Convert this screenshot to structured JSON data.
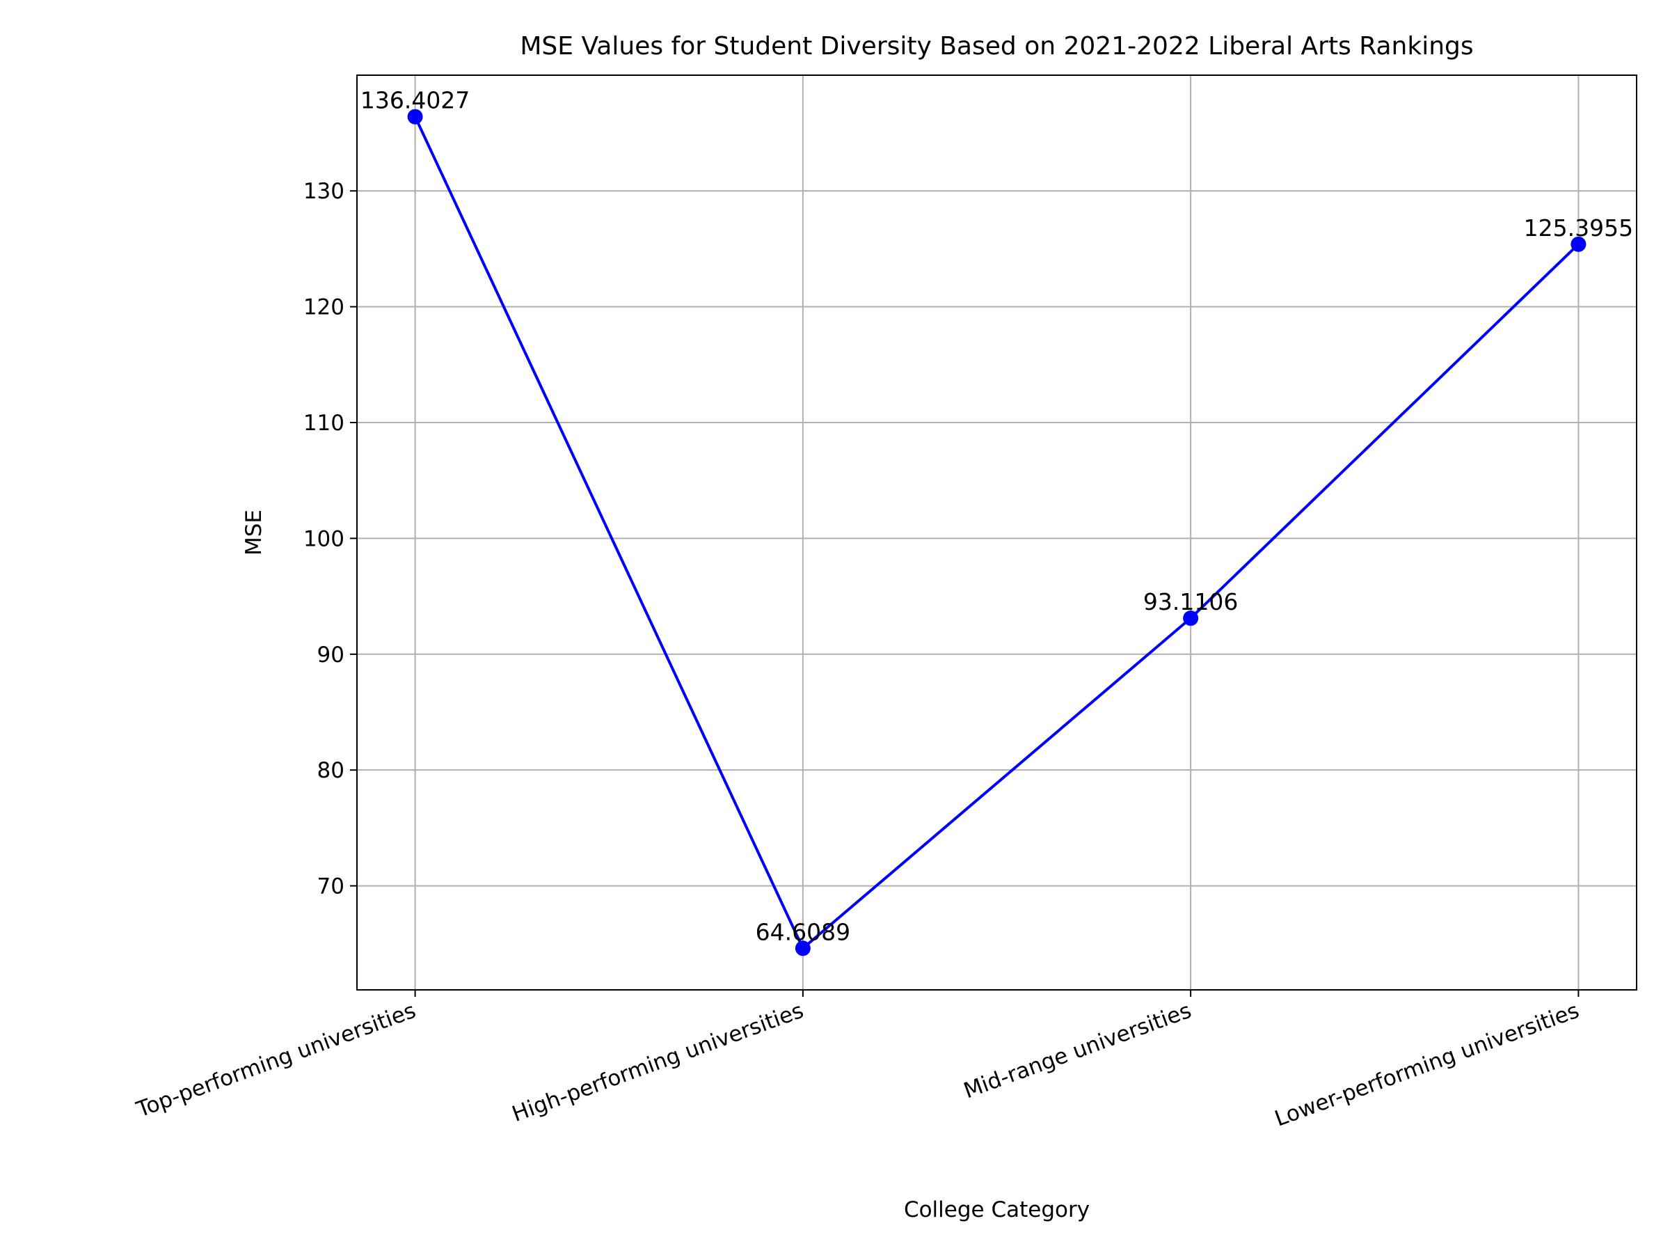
{
  "chart_data": {
    "type": "line",
    "title": "MSE Values for Student Diversity Based on 2021-2022 Liberal Arts Rankings",
    "xlabel": "College Category",
    "ylabel": "MSE",
    "categories": [
      "Top-performing universities",
      "High-performing universities",
      "Mid-range universities",
      "Lower-performing universities"
    ],
    "series": [
      {
        "values": [
          136.4027,
          64.6089,
          93.1106,
          125.3955
        ],
        "color": "#0000ff",
        "marker": "circle"
      }
    ],
    "data_labels": [
      "136.4027",
      "64.6089",
      "93.1106",
      "125.3955"
    ],
    "yticks": [
      70,
      80,
      90,
      100,
      110,
      120,
      130
    ],
    "ytick_labels": [
      "70",
      "80",
      "90",
      "100",
      "110",
      "120",
      "130"
    ],
    "ylim": [
      61.02,
      139.99
    ],
    "xtick_rotation": 20,
    "grid": true
  }
}
